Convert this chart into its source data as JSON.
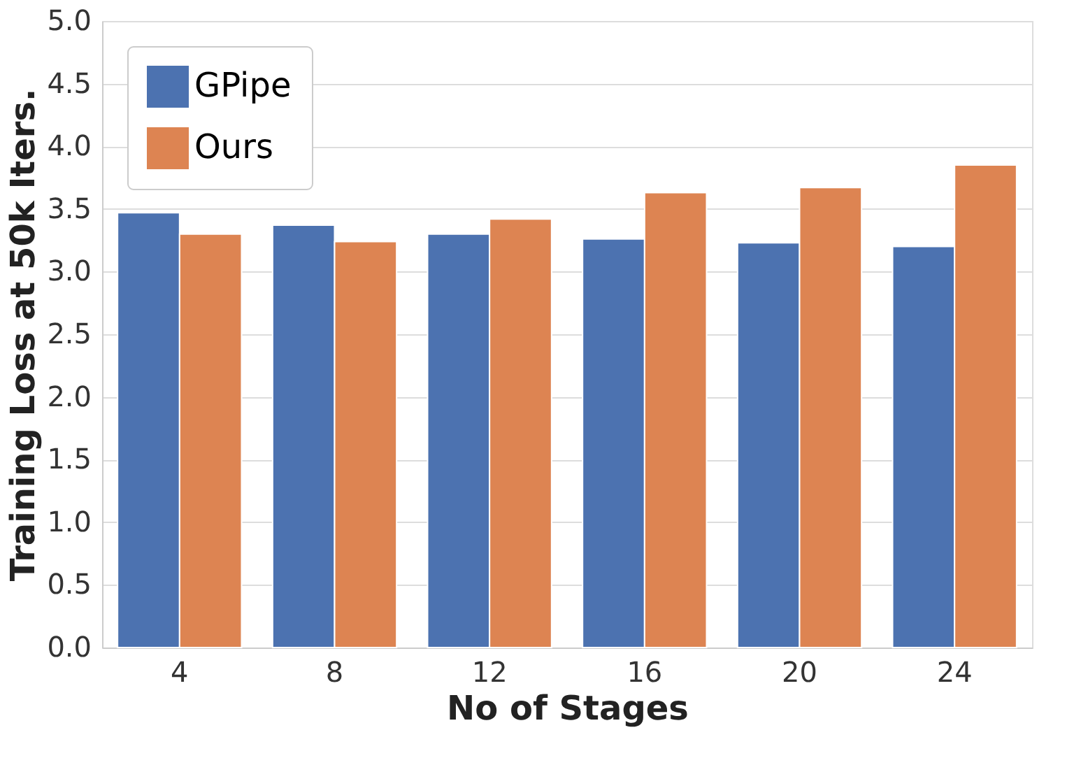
{
  "chart_data": {
    "type": "bar",
    "xlabel": "No of Stages",
    "ylabel": "Training Loss at 50k Iters.",
    "categories": [
      "4",
      "8",
      "12",
      "16",
      "20",
      "24"
    ],
    "series": [
      {
        "name": "GPipe",
        "color": "#4c72b0",
        "values": [
          3.47,
          3.37,
          3.3,
          3.26,
          3.23,
          3.2
        ]
      },
      {
        "name": "Ours",
        "color": "#dd8452",
        "values": [
          3.3,
          3.24,
          3.42,
          3.63,
          3.67,
          3.85
        ]
      }
    ],
    "ylim": [
      0,
      5.0
    ],
    "yticks": [
      {
        "value": 0,
        "label": "0.0"
      },
      0.5,
      {
        "value": 1,
        "label": "1.0"
      },
      1.5,
      {
        "value": 2,
        "label": "2.0"
      },
      2.5,
      {
        "value": 3,
        "label": "3.0"
      },
      3.5,
      {
        "value": 4,
        "label": "4.0"
      },
      4.5,
      {
        "value": 5,
        "label": "5.0"
      }
    ],
    "grid": "y",
    "legend": "top left"
  }
}
